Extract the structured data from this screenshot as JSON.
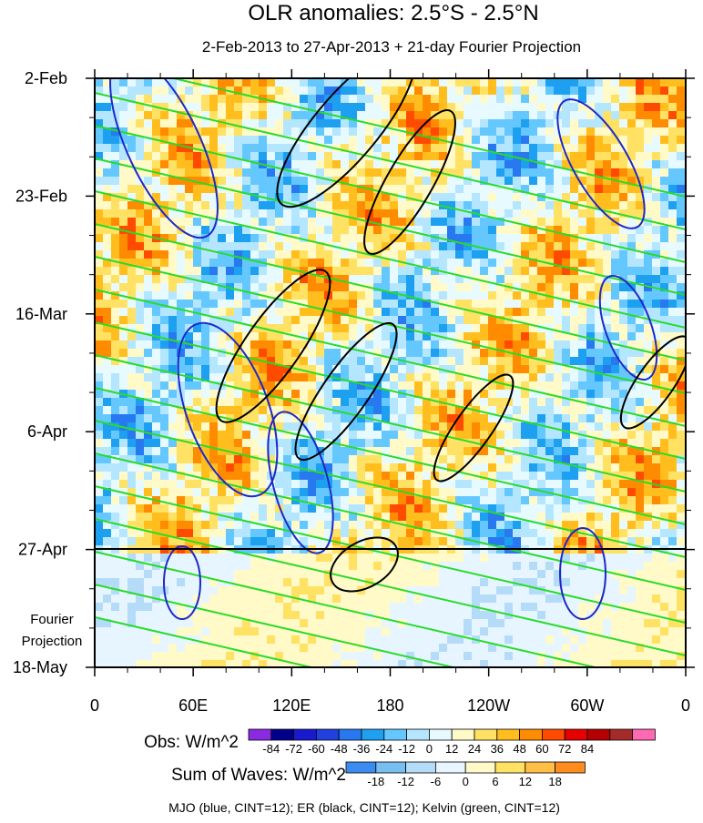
{
  "chart_data": {
    "type": "heatmap",
    "title": "OLR anomalies: 2.5°S - 2.5°N",
    "subtitle": "2-Feb-2013 to 27-Apr-2013 + 21-day Fourier Projection",
    "x_axis": {
      "ticks": [
        "0",
        "60E",
        "120E",
        "180",
        "120W",
        "60W",
        "0"
      ],
      "range_deg_east": [
        0,
        360
      ]
    },
    "y_axis": {
      "ticks": [
        "2-Feb",
        "23-Feb",
        "16-Mar",
        "6-Apr",
        "27-Apr",
        "18-May"
      ],
      "range": [
        "2-Feb-2013",
        "18-May-2013"
      ],
      "reversed": true
    },
    "projection_label": [
      "Fourier",
      "Projection"
    ],
    "projection_start": "27-Apr-2013",
    "obs_legend": {
      "label": "Obs: W/m^2",
      "levels": [
        "-84",
        "-72",
        "-60",
        "-48",
        "-36",
        "-24",
        "-12",
        "0",
        "12",
        "24",
        "36",
        "48",
        "60",
        "72",
        "84"
      ],
      "colors": [
        "#8a2be2",
        "#00008b",
        "#1a1acd",
        "#2040e0",
        "#2878f0",
        "#1ea0f0",
        "#64c8ff",
        "#b4e6ff",
        "#e6faff",
        "#fffac8",
        "#ffe164",
        "#ffbe1e",
        "#ff8c00",
        "#ff4b00",
        "#e60000",
        "#b40000",
        "#a52a2a",
        "#ff69b4"
      ]
    },
    "waves_legend": {
      "label": "Sum of Waves: W/m^2",
      "levels": [
        "-18",
        "-12",
        "-6",
        "0",
        "6",
        "12",
        "18"
      ],
      "colors": [
        "#3c8cf0",
        "#78bef0",
        "#b4dcf8",
        "#e6f5ff",
        "#fffac8",
        "#ffe164",
        "#ffbe46",
        "#ff8c1e"
      ]
    },
    "contours_note": "MJO (blue, CINT=12); ER (black, CINT=12); Kelvin (green, CINT=12)",
    "contour_colors": {
      "mjo": "#1e28c8",
      "er": "#000000",
      "kelvin": "#28dc28"
    }
  }
}
